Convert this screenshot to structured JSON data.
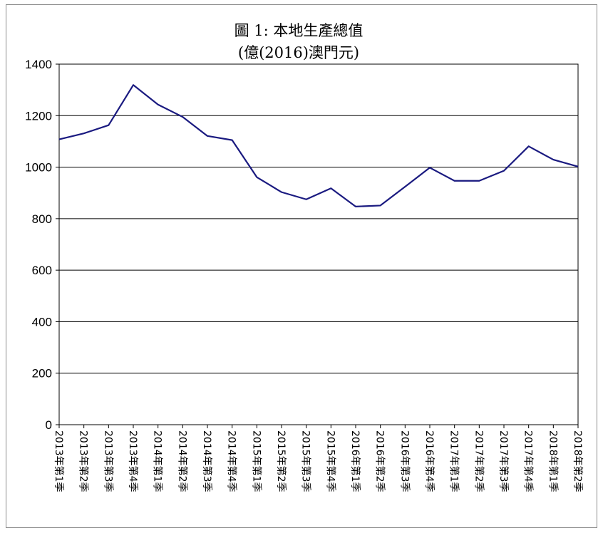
{
  "chart_data": {
    "type": "line",
    "title": "圖 1: 本地生產總值",
    "subtitle": "(億(2016)澳門元)",
    "xlabel": "",
    "ylabel": "",
    "ylim": [
      0,
      1400
    ],
    "yticks": [
      0,
      200,
      400,
      600,
      800,
      1000,
      1200,
      1400
    ],
    "grid": true,
    "legend": "none",
    "line_color": "#1a1a80",
    "categories": [
      "2013年第1季",
      "2013年第2季",
      "2013年第3季",
      "2013年第4季",
      "2014年第1季",
      "2014年第2季",
      "2014年第3季",
      "2014年第4季",
      "2015年第1季",
      "2015年第2季",
      "2015年第3季",
      "2015年第4季",
      "2016年第1季",
      "2016年第2季",
      "2016年第3季",
      "2016年第4季",
      "2017年第1季",
      "2017年第2季",
      "2017年第3季",
      "2017年第4季",
      "2018年第1季",
      "2018年第2季"
    ],
    "series": [
      {
        "values": [
          1108,
          1131,
          1163,
          1319,
          1243,
          1195,
          1121,
          1105,
          961,
          903,
          875,
          918,
          847,
          851,
          924,
          998,
          947,
          947,
          986,
          1081,
          1029,
          1002
        ]
      }
    ]
  }
}
